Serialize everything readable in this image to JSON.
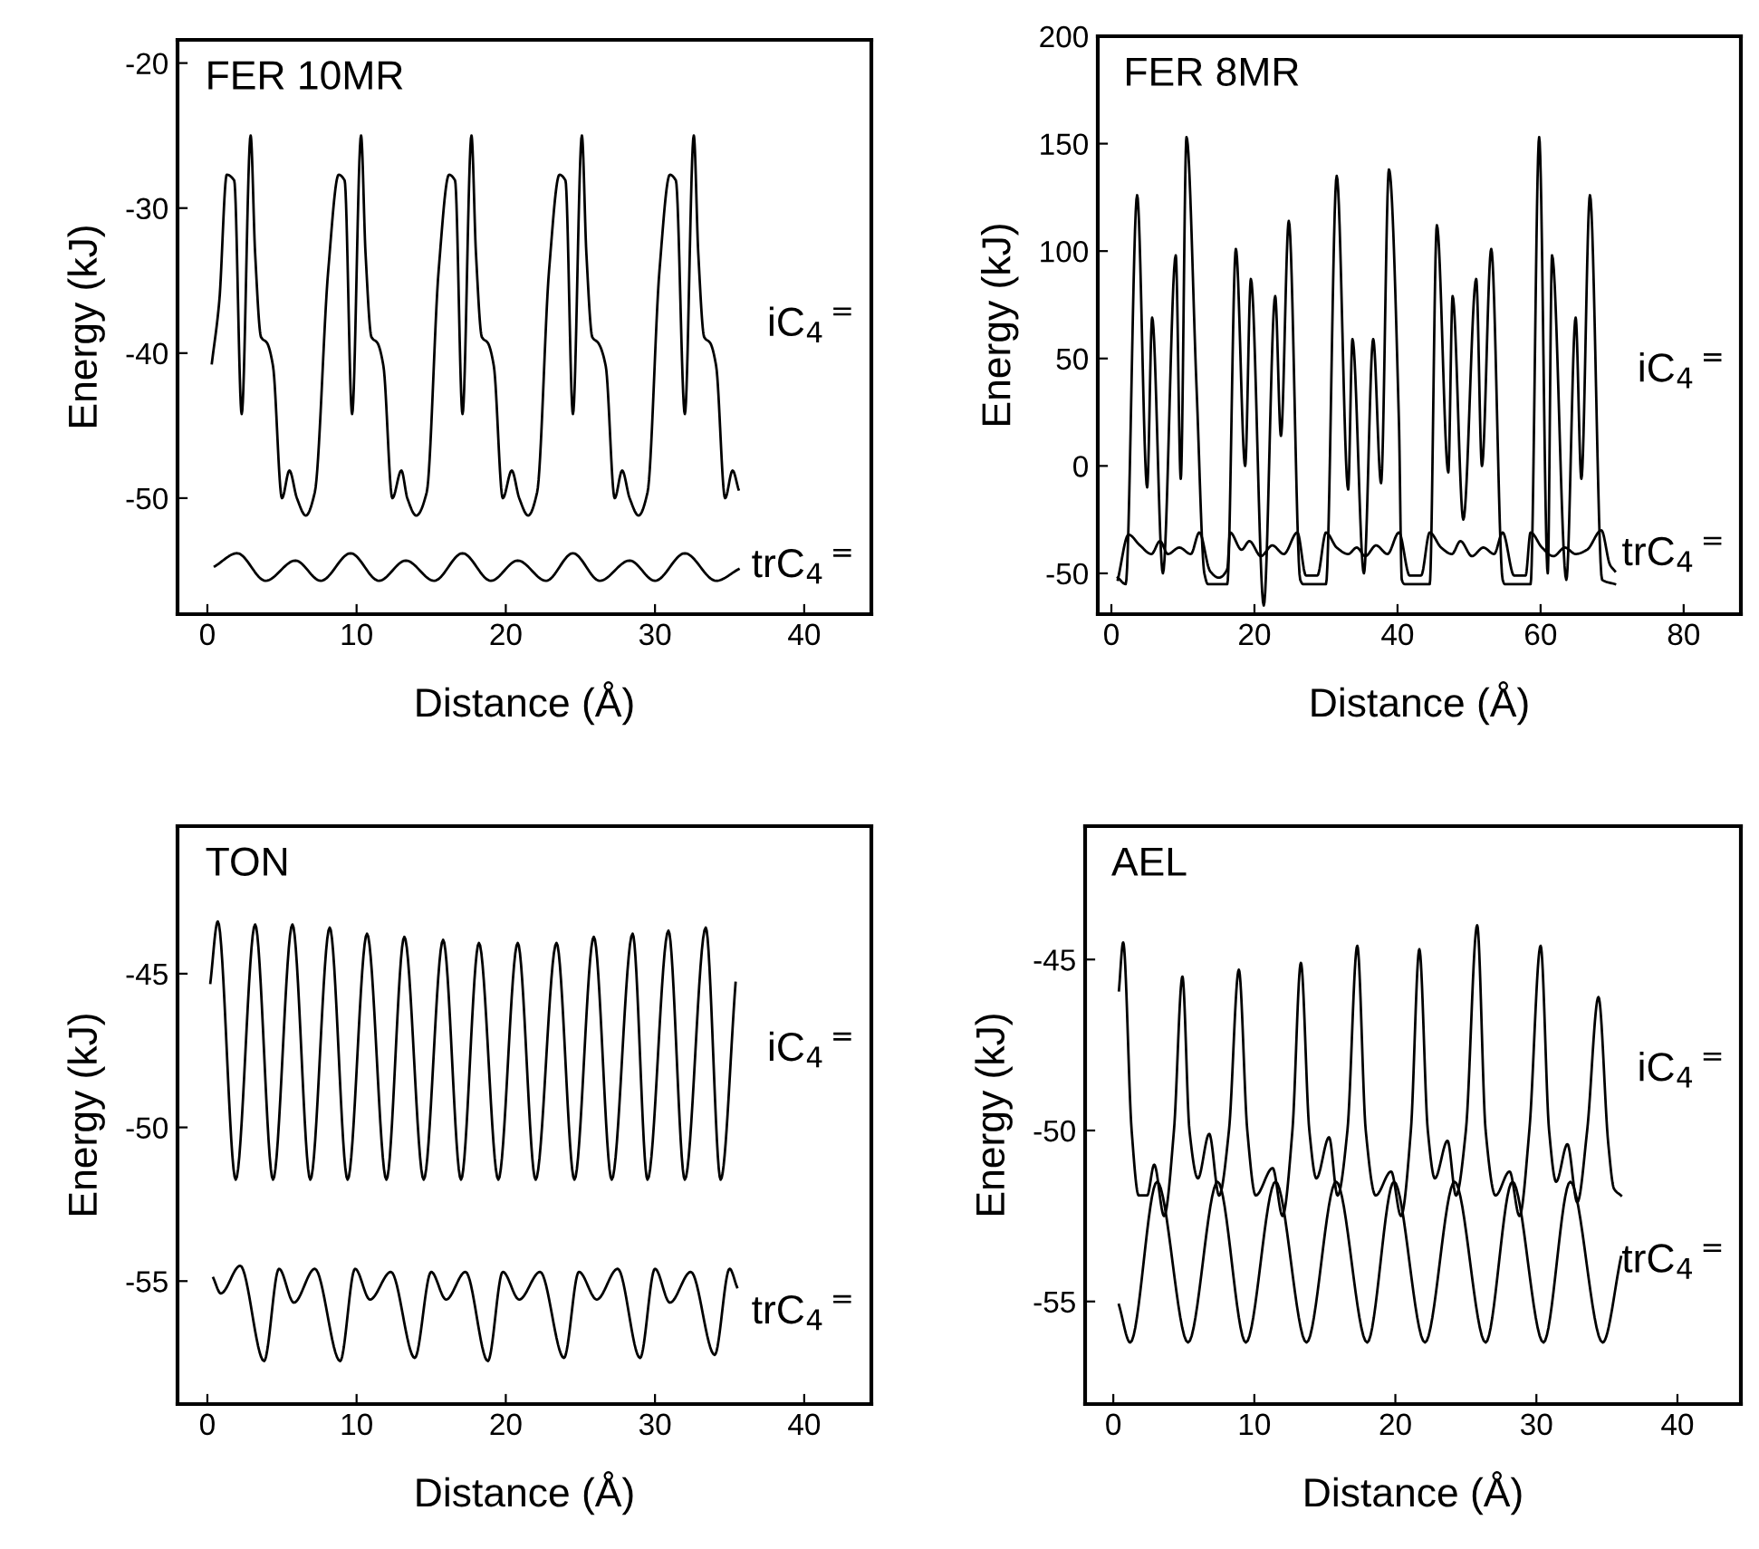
{
  "chart_data": [
    {
      "type": "line",
      "title": "FER 10MR",
      "xlabel": "Distance (Å)",
      "ylabel": "Energy (kJ)",
      "xlim": [
        -2,
        44.5
      ],
      "ylim": [
        -58,
        -18.4
      ],
      "xticks": [
        0,
        10,
        20,
        30,
        40
      ],
      "yticks": [
        -20,
        -30,
        -40,
        -50
      ],
      "series": [
        {
          "name": "iC$_{4}$$^{=}$",
          "color": "#000000",
          "x": [
            0.3,
            0.8,
            1.3,
            1.8,
            2.3,
            2.9,
            3.2,
            3.6,
            4.0,
            4.4,
            5.0,
            5.5,
            6.0,
            6.6,
            7.2,
            8.1,
            8.8,
            9.2,
            9.7,
            10.3,
            10.6,
            11.0,
            11.4,
            11.8,
            12.4,
            13.0,
            13.4,
            14.0,
            14.7,
            15.5,
            16.2,
            16.6,
            17.1,
            17.7,
            18.0,
            18.4,
            18.8,
            19.2,
            19.8,
            20.4,
            20.9,
            21.5,
            22.1,
            22.9,
            23.6,
            24.0,
            24.5,
            25.1,
            25.4,
            25.8,
            26.2,
            26.7,
            27.3,
            27.8,
            28.3,
            28.9,
            29.5,
            30.3,
            31.0,
            31.4,
            32.0,
            32.6,
            32.9,
            33.3,
            33.7,
            34.1,
            34.7,
            35.2,
            35.6
          ],
          "values": [
            -40.7,
            -36.4,
            -27.7,
            -28.1,
            -44.2,
            -25.0,
            -33.1,
            -38.9,
            -39.3,
            -40.9,
            -50.0,
            -48.1,
            -50.0,
            -51.2,
            -49.6,
            -34.3,
            -27.7,
            -28.1,
            -44.2,
            -25.0,
            -33.1,
            -38.9,
            -39.3,
            -40.9,
            -50.0,
            -48.1,
            -50.0,
            -51.2,
            -49.6,
            -34.3,
            -27.7,
            -28.1,
            -44.2,
            -25.0,
            -33.1,
            -38.9,
            -39.3,
            -40.9,
            -50.0,
            -48.1,
            -50.0,
            -51.2,
            -49.6,
            -34.3,
            -27.7,
            -28.1,
            -44.2,
            -25.0,
            -33.1,
            -38.9,
            -39.3,
            -40.9,
            -50.0,
            -48.1,
            -50.0,
            -51.2,
            -49.6,
            -34.3,
            -27.7,
            -28.1,
            -44.2,
            -25.0,
            -33.1,
            -38.9,
            -39.3,
            -40.9,
            -50.0,
            -48.1,
            -49.4
          ]
        },
        {
          "name": "trC$_{4}$$^{=}$",
          "color": "#000000",
          "x": [
            0.5,
            2.0,
            3.9,
            5.9,
            7.6,
            9.6,
            11.5,
            13.3,
            15.2,
            17.1,
            19.0,
            20.8,
            22.7,
            24.5,
            26.3,
            28.3,
            30.0,
            32.0,
            34.1,
            35.6
          ],
          "values": [
            -54.7,
            -53.8,
            -55.7,
            -54.3,
            -55.7,
            -53.8,
            -55.7,
            -54.3,
            -55.7,
            -53.8,
            -55.7,
            -54.3,
            -55.7,
            -53.8,
            -55.7,
            -54.3,
            -55.7,
            -53.8,
            -55.7,
            -54.9
          ]
        }
      ]
    },
    {
      "type": "line",
      "title": "FER 8MR",
      "xlabel": "Distance (Å)",
      "ylabel": "Energy (kJ)",
      "xlim": [
        -1.9,
        88
      ],
      "ylim": [
        -69,
        200
      ],
      "xticks": [
        0,
        20,
        40,
        60,
        80
      ],
      "yticks": [
        -50,
        0,
        50,
        100,
        150,
        200
      ],
      "series": [
        {
          "name": "iC$_{4}$$^{=}$",
          "color": "#000000",
          "x": [
            0.9,
            2.0,
            3.6,
            5.0,
            5.7,
            7.2,
            9.0,
            9.7,
            10.5,
            11.9,
            13.0,
            13.5,
            16.2,
            17.4,
            18.7,
            19.5,
            21.3,
            22.9,
            23.7,
            24.8,
            26.4,
            26.8,
            30.0,
            31.5,
            33.1,
            33.7,
            35.3,
            36.6,
            37.7,
            38.8,
            40.2,
            40.6,
            41.0,
            44.5,
            45.5,
            47.1,
            47.7,
            49.2,
            51.0,
            51.8,
            53.1,
            54.7,
            55.0,
            58.6,
            59.8,
            61.0,
            61.6,
            63.6,
            64.9,
            65.7,
            66.9,
            68.6,
            70.4
          ],
          "values": [
            -52,
            -55,
            126,
            -10,
            69,
            -50,
            98,
            -6,
            153,
            37,
            -50,
            -55,
            -55,
            101,
            0,
            87,
            -65,
            79,
            14,
            114,
            -53,
            -55,
            -55,
            135,
            -11,
            59,
            -50,
            59,
            -8,
            138,
            20,
            -53,
            -55,
            -55,
            112,
            -3,
            79,
            -25,
            87,
            0,
            101,
            -53,
            -55,
            -55,
            153,
            -50,
            98,
            -53,
            69,
            -6,
            126,
            -53,
            -55
          ]
        },
        {
          "name": "trC$_{4}$$^{=}$",
          "color": "#000000",
          "x": [
            0.9,
            2.4,
            4.0,
            5.6,
            6.8,
            7.9,
            9.5,
            11.1,
            12.3,
            13.8,
            15.0,
            16.2,
            16.6,
            18.2,
            19.3,
            20.9,
            22.5,
            24.1,
            26.0,
            27.2,
            28.8,
            30.0,
            31.5,
            33.1,
            34.3,
            35.5,
            37.0,
            38.6,
            40.2,
            41.7,
            43.3,
            44.5,
            46.1,
            47.6,
            48.8,
            50.4,
            52.0,
            53.5,
            54.7,
            56.3,
            57.9,
            58.6,
            60.2,
            61.8,
            63.4,
            64.9,
            66.5,
            68.5,
            69.7,
            70.4
          ],
          "values": [
            -53,
            -32,
            -37,
            -41,
            -35,
            -41,
            -38,
            -41,
            -31,
            -49,
            -52,
            -48,
            -31,
            -39,
            -35,
            -42,
            -37,
            -41,
            -31,
            -51,
            -51,
            -31,
            -38,
            -41,
            -38,
            -42,
            -37,
            -41,
            -31,
            -51,
            -51,
            -31,
            -38,
            -41,
            -35,
            -42,
            -38,
            -41,
            -31,
            -51,
            -51,
            -31,
            -38,
            -42,
            -38,
            -41,
            -39,
            -30,
            -46,
            -49
          ]
        }
      ]
    },
    {
      "type": "line",
      "title": "TON",
      "xlabel": "Distance (Å)",
      "ylabel": "Energy (kJ)",
      "xlim": [
        -2,
        44.5
      ],
      "ylim": [
        -59,
        -40.2
      ],
      "xticks": [
        0,
        10,
        20,
        30,
        40
      ],
      "yticks": [
        -45,
        -50,
        -55
      ],
      "series": [
        {
          "name": "iC$_{4}$$^{=}$",
          "color": "#000000",
          "x": [
            0.2,
            0.7,
            1.9,
            3.2,
            4.4,
            5.7,
            6.9,
            8.2,
            9.4,
            10.7,
            12.0,
            13.2,
            14.5,
            15.8,
            17.0,
            18.2,
            19.5,
            20.8,
            22.0,
            23.4,
            24.6,
            25.9,
            27.1,
            28.5,
            29.5,
            30.9,
            32.0,
            33.4,
            34.4,
            35.4
          ],
          "values": [
            -45.3,
            -43.3,
            -51.7,
            -43.4,
            -51.7,
            -43.4,
            -51.7,
            -43.5,
            -51.7,
            -43.7,
            -51.7,
            -43.8,
            -51.7,
            -43.9,
            -51.7,
            -44.0,
            -51.7,
            -44.0,
            -51.7,
            -44.0,
            -51.7,
            -43.8,
            -51.7,
            -43.7,
            -51.7,
            -43.6,
            -51.7,
            -43.5,
            -51.7,
            -45.3
          ]
        },
        {
          "name": "trC$_{4}$$^{=}$",
          "color": "#000000",
          "x": [
            0.4,
            0.9,
            2.2,
            3.8,
            4.8,
            5.8,
            7.2,
            8.9,
            9.9,
            10.9,
            12.3,
            13.9,
            15.0,
            16.0,
            17.3,
            18.8,
            19.8,
            20.9,
            22.3,
            23.9,
            24.9,
            26.1,
            27.5,
            29.0,
            30.0,
            31.0,
            32.4,
            34.0,
            35.0,
            35.5
          ],
          "values": [
            -54.9,
            -55.4,
            -54.5,
            -57.6,
            -54.6,
            -55.7,
            -54.6,
            -57.6,
            -54.6,
            -55.6,
            -54.7,
            -57.5,
            -54.7,
            -55.6,
            -54.7,
            -57.6,
            -54.7,
            -55.6,
            -54.7,
            -57.5,
            -54.7,
            -55.6,
            -54.6,
            -57.5,
            -54.6,
            -55.7,
            -54.7,
            -57.4,
            -54.6,
            -55.2
          ]
        }
      ]
    },
    {
      "type": "line",
      "title": "AEL",
      "xlabel": "Distance (Å)",
      "ylabel": "Energy (kJ)",
      "xlim": [
        -2,
        44.5
      ],
      "ylim": [
        -58,
        -41.1
      ],
      "xticks": [
        0,
        10,
        20,
        30,
        40
      ],
      "yticks": [
        -45,
        -50,
        -55
      ],
      "series": [
        {
          "name": "iC$_{4}$$^{=}$",
          "color": "#000000",
          "x": [
            0.4,
            0.7,
            1.3,
            1.8,
            2.4,
            2.9,
            3.6,
            4.3,
            4.9,
            5.4,
            6.0,
            6.8,
            7.5,
            8.2,
            8.9,
            9.5,
            10.1,
            11.3,
            12.0,
            12.7,
            13.3,
            13.9,
            14.4,
            15.3,
            15.9,
            16.6,
            17.3,
            17.9,
            18.6,
            19.7,
            20.4,
            21.1,
            21.7,
            22.3,
            22.8,
            23.7,
            24.3,
            25.0,
            25.8,
            26.4,
            27.1,
            28.1,
            28.8,
            29.5,
            30.3,
            30.9,
            31.4,
            32.2,
            32.9,
            33.6,
            34.4,
            35.1,
            35.5,
            36.0
          ],
          "values": [
            -45.9,
            -44.5,
            -50.0,
            -51.9,
            -51.9,
            -51.0,
            -52.5,
            -50.0,
            -45.5,
            -50.0,
            -51.4,
            -50.1,
            -51.9,
            -50.0,
            -45.3,
            -50.0,
            -51.9,
            -51.1,
            -52.5,
            -50.0,
            -45.1,
            -50.0,
            -51.4,
            -50.2,
            -51.9,
            -50.0,
            -44.6,
            -50.0,
            -51.9,
            -51.2,
            -52.5,
            -50.0,
            -44.7,
            -50.0,
            -51.4,
            -50.3,
            -51.9,
            -50.0,
            -44.0,
            -50.0,
            -51.9,
            -51.2,
            -52.5,
            -50.0,
            -44.6,
            -50.0,
            -51.5,
            -50.4,
            -52.1,
            -50.0,
            -46.1,
            -50.4,
            -51.7,
            -51.9
          ]
        },
        {
          "name": "trC$_{4}$$^{=}$",
          "color": "#000000",
          "x": [
            0.4,
            1.2,
            3.1,
            5.3,
            7.4,
            9.4,
            11.5,
            13.7,
            15.8,
            18.0,
            19.9,
            22.1,
            24.2,
            26.4,
            28.3,
            30.5,
            32.4,
            34.7,
            36.0
          ],
          "values": [
            -55.1,
            -56.2,
            -51.5,
            -56.2,
            -51.5,
            -56.2,
            -51.5,
            -56.2,
            -51.5,
            -56.2,
            -51.5,
            -56.2,
            -51.5,
            -56.2,
            -51.5,
            -56.2,
            -51.5,
            -56.2,
            -53.7
          ]
        }
      ]
    }
  ]
}
